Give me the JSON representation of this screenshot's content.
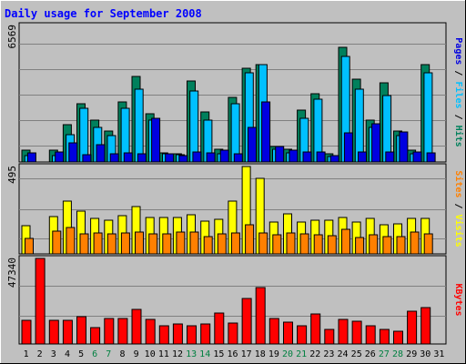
{
  "chart_data": {
    "type": "bar",
    "title": "Daily usage for September 2008",
    "categories": [
      "1",
      "2",
      "3",
      "4",
      "5",
      "6",
      "7",
      "8",
      "9",
      "10",
      "11",
      "12",
      "13",
      "14",
      "15",
      "16",
      "17",
      "18",
      "19",
      "20",
      "21",
      "22",
      "23",
      "24",
      "25",
      "26",
      "27",
      "28",
      "29",
      "30",
      "31"
    ],
    "weekend_days": [
      "6",
      "7",
      "13",
      "14",
      "20",
      "21",
      "27",
      "28"
    ],
    "background_color": "#c0c0c0",
    "grid": true,
    "panels": [
      {
        "id": "hits",
        "ymax_label": "6569",
        "ymax": 6569,
        "series": [
          {
            "name": "Hits",
            "color": "#00805c",
            "values": [
              580,
              0,
              570,
              1800,
              2800,
              2000,
              1500,
              2900,
              4100,
              2300,
              450,
              400,
              3900,
              2400,
              600,
              3100,
              4500,
              4700,
              750,
              600,
              2500,
              3300,
              380,
              5500,
              4000,
              2000,
              3800,
              1500,
              560,
              4700,
              0
            ]
          },
          {
            "name": "Files",
            "color": "#00c0ff",
            "values": [
              300,
              0,
              320,
              1300,
              2600,
              1650,
              1250,
              2600,
              3500,
              2000,
              380,
              350,
              3400,
              2000,
              380,
              2800,
              4300,
              4700,
              600,
              450,
              2100,
              3000,
              260,
              5100,
              3500,
              1650,
              3200,
              1250,
              400,
              4300,
              0
            ]
          },
          {
            "name": "Pages",
            "color": "#0000e0",
            "values": [
              450,
              0,
              480,
              900,
              350,
              850,
              400,
              450,
              400,
              2100,
              380,
              320,
              500,
              450,
              550,
              400,
              1650,
              2900,
              740,
              560,
              500,
              500,
              310,
              1400,
              500,
              1850,
              500,
              1450,
              470,
              430,
              0
            ]
          }
        ],
        "legend": [
          "Pages",
          " / ",
          "Files",
          " / ",
          "Hits"
        ]
      },
      {
        "id": "visits",
        "ymax_label": "495",
        "ymax": 495,
        "series": [
          {
            "name": "Visits",
            "color": "#ffff00",
            "values": [
              160,
              0,
              210,
              300,
              240,
              200,
              190,
              215,
              270,
              205,
              205,
              205,
              220,
              185,
              195,
              300,
              495,
              430,
              180,
              225,
              180,
              190,
              190,
              205,
              180,
              200,
              165,
              170,
              200,
              200,
              0
            ]
          },
          {
            "name": "Sites",
            "color": "#ff8000",
            "values": [
              90,
              0,
              130,
              150,
              115,
              120,
              115,
              120,
              125,
              115,
              115,
              125,
              125,
              100,
              115,
              120,
              165,
              120,
              110,
              120,
              115,
              110,
              105,
              140,
              95,
              110,
              100,
              100,
              125,
              115,
              0
            ]
          }
        ],
        "legend": [
          "Sites",
          " / ",
          "Visits"
        ]
      },
      {
        "id": "kbytes",
        "ymax_label": "47340",
        "ymax": 47340,
        "series": [
          {
            "name": "KBytes",
            "color": "#ff0000",
            "values": [
              13000,
              47340,
              13000,
              13000,
              15000,
              9000,
              14000,
              14000,
              19000,
              13500,
              10000,
              11000,
              10000,
              11000,
              17000,
              11500,
              25000,
              31000,
              14000,
              12000,
              10000,
              16500,
              8000,
              13500,
              12500,
              10000,
              8000,
              7000,
              18000,
              20000,
              0
            ]
          }
        ],
        "legend": [
          "KBytes"
        ]
      }
    ]
  }
}
